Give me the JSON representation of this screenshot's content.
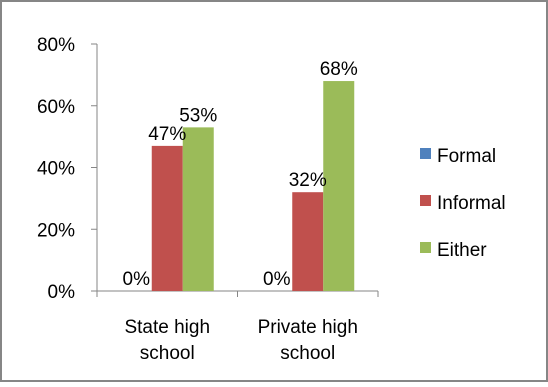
{
  "chart_data": {
    "type": "bar",
    "title": "",
    "xlabel": "",
    "ylabel": "",
    "categories": [
      [
        "State high",
        "school"
      ],
      [
        "Private high",
        "school"
      ]
    ],
    "series": [
      {
        "name": "Formal",
        "color": "#4f81bd",
        "values": [
          0,
          0
        ],
        "labels": [
          "0%",
          "0%"
        ]
      },
      {
        "name": "Informal",
        "color": "#c0504d",
        "values": [
          47,
          32
        ],
        "labels": [
          "47%",
          "32%"
        ]
      },
      {
        "name": "Either",
        "color": "#9bbb59",
        "values": [
          53,
          68
        ],
        "labels": [
          "53%",
          "68%"
        ]
      }
    ],
    "ylim": [
      0,
      80
    ],
    "yticks": [
      0,
      20,
      40,
      60,
      80
    ],
    "ytick_labels": [
      "0%",
      "20%",
      "40%",
      "60%",
      "80%"
    ],
    "grid": false,
    "legend_position": "right",
    "frame_color": "#868686"
  }
}
